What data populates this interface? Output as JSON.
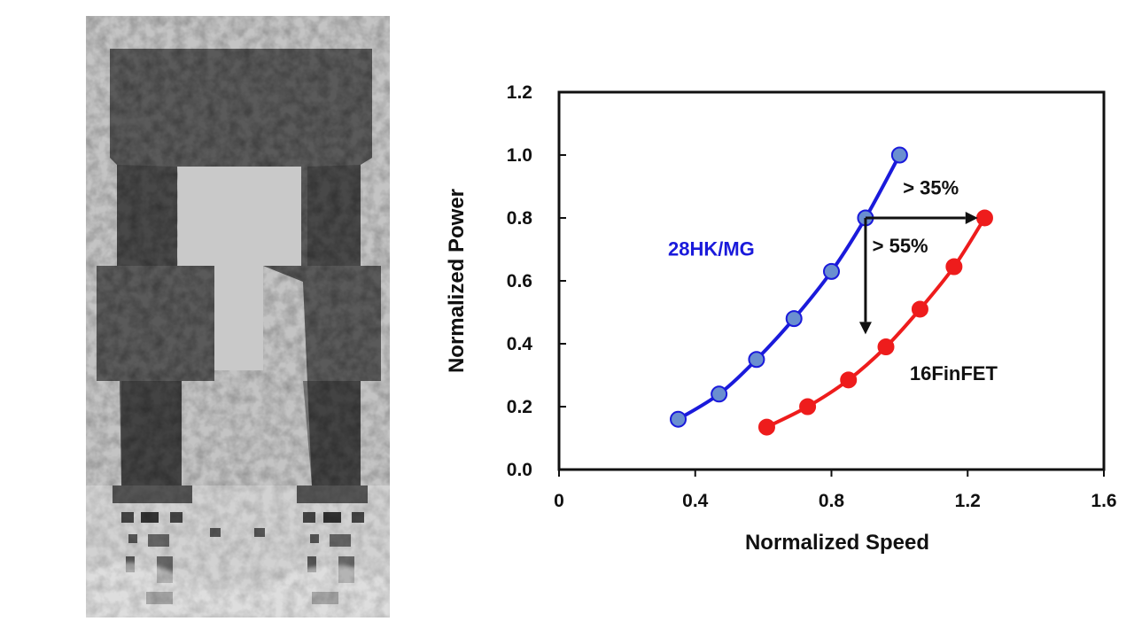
{
  "chart_data": {
    "type": "line",
    "xlabel": "Normalized Speed",
    "ylabel": "Normalized Power",
    "xlim": [
      0,
      1.6
    ],
    "ylim": [
      0,
      1.2
    ],
    "x_ticks": [
      "0",
      "0.4",
      "0.8",
      "1.2",
      "1.6"
    ],
    "y_ticks": [
      "0.0",
      "0.2",
      "0.4",
      "0.6",
      "0.8",
      "1.0",
      "1.2"
    ],
    "grid": false,
    "series": [
      {
        "name": "28HK/MG",
        "color": "#1a1adb",
        "marker_color": "#6a8fd0",
        "points": [
          [
            0.35,
            0.16
          ],
          [
            0.47,
            0.24
          ],
          [
            0.58,
            0.35
          ],
          [
            0.69,
            0.48
          ],
          [
            0.8,
            0.63
          ],
          [
            0.9,
            0.8
          ],
          [
            1.0,
            1.0
          ]
        ]
      },
      {
        "name": "16FinFET",
        "color": "#ee1c1c",
        "marker_color": "#ee1c1c",
        "points": [
          [
            0.61,
            0.135
          ],
          [
            0.73,
            0.2
          ],
          [
            0.85,
            0.285
          ],
          [
            0.96,
            0.39
          ],
          [
            1.06,
            0.51
          ],
          [
            1.16,
            0.645
          ],
          [
            1.25,
            0.8
          ]
        ]
      }
    ],
    "annotations": [
      {
        "text": "> 35%",
        "arrow_from": [
          0.9,
          0.8
        ],
        "arrow_to": [
          1.25,
          0.8
        ]
      },
      {
        "text": "> 55%",
        "arrow_from": [
          0.9,
          0.8
        ],
        "arrow_to": [
          0.9,
          0.43
        ]
      }
    ]
  },
  "left_image": {
    "kind": "cross-section micrograph",
    "tone": "grayscale"
  }
}
